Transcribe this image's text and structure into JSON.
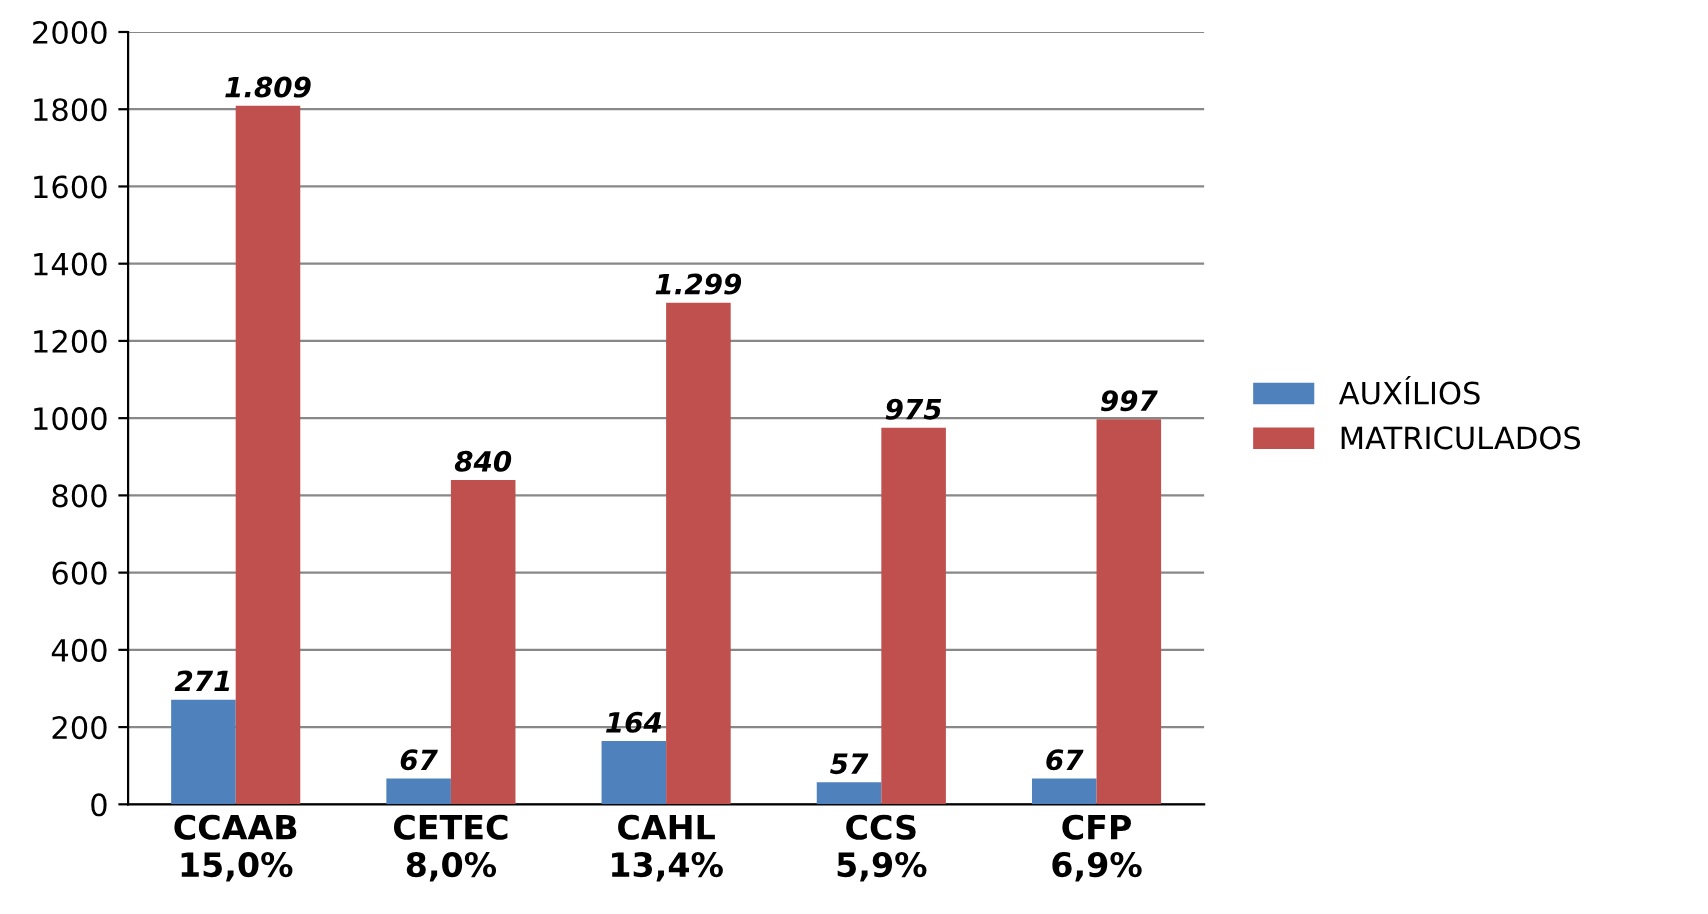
{
  "chart_data": {
    "type": "bar",
    "categories": [
      "CCAAB\n15,0%",
      "CETEC\n8,0%",
      "CAHL\n13,4%",
      "CCS\n5,9%",
      "CFP\n6,9%"
    ],
    "series": [
      {
        "name": "AUXÍLIOS",
        "color": "#4f81bd",
        "values": [
          271,
          67,
          164,
          57,
          67
        ],
        "value_labels": [
          "271",
          "67",
          "164",
          "57",
          "67"
        ]
      },
      {
        "name": "MATRICULADOS",
        "color": "#c0504d",
        "values": [
          1809,
          840,
          1299,
          975,
          997
        ],
        "value_labels": [
          "1.809",
          "840",
          "1.299",
          "975",
          "997"
        ]
      }
    ],
    "ylim": [
      0,
      2000
    ],
    "yticks": [
      0,
      200,
      400,
      600,
      800,
      1000,
      1200,
      1400,
      1600,
      1800,
      2000
    ],
    "grid": "y",
    "legend": "right"
  }
}
